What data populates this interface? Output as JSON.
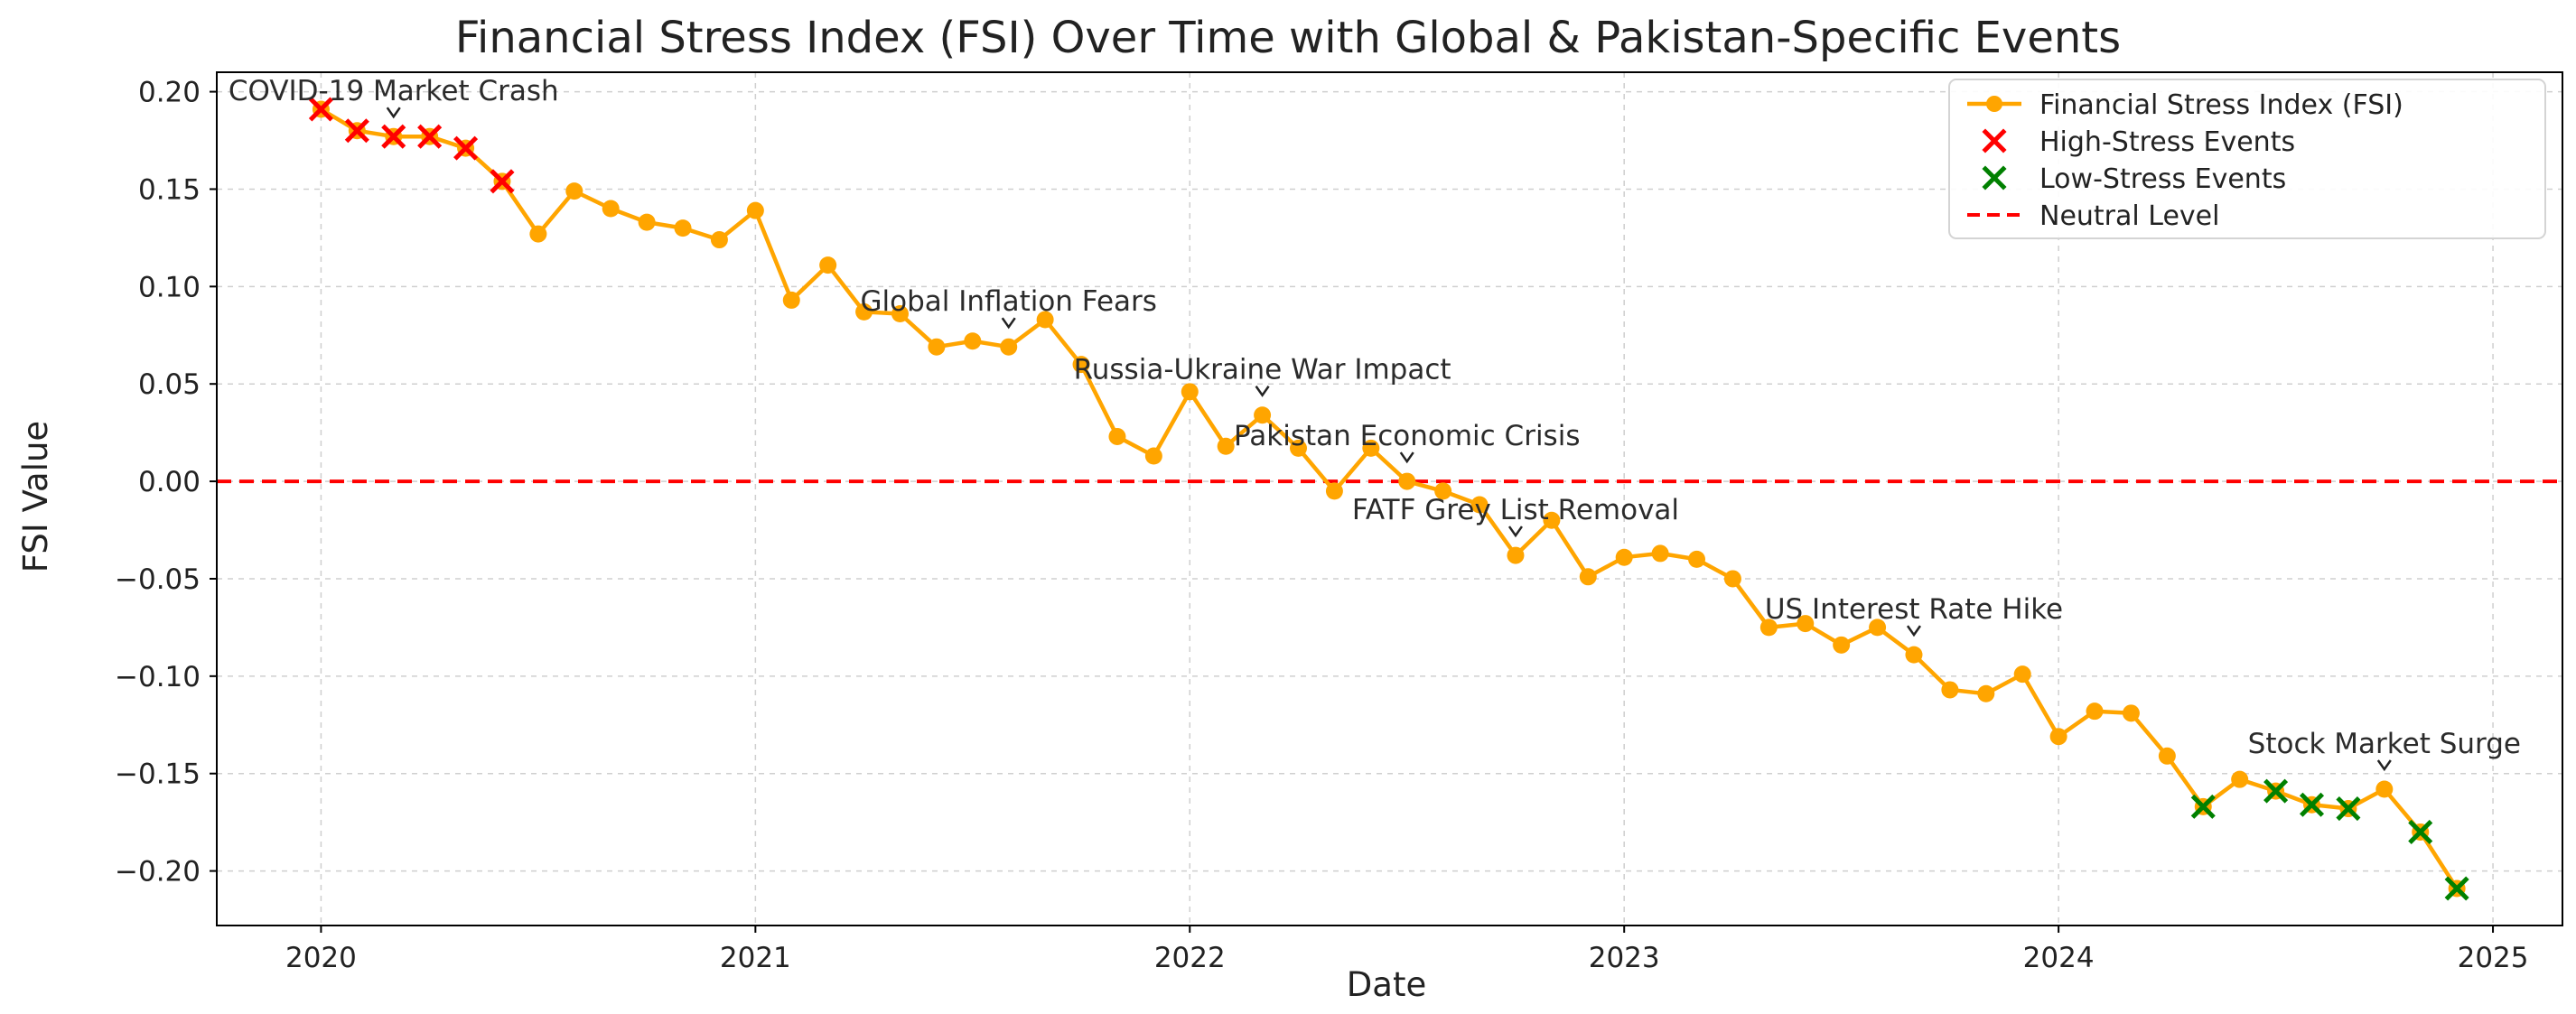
{
  "chart_data": {
    "type": "line",
    "title": "Financial Stress Index (FSI) Over Time with Global & Pakistan-Specific Events",
    "xlabel": "Date",
    "ylabel": "FSI Value",
    "xlim": [
      2019.76,
      2025.16
    ],
    "ylim": [
      -0.228,
      0.21
    ],
    "x_ticks": [
      2020,
      2021,
      2022,
      2023,
      2024,
      2025
    ],
    "x_tick_labels": [
      "2020",
      "2021",
      "2022",
      "2023",
      "2024",
      "2025"
    ],
    "y_ticks": [
      -0.2,
      -0.15,
      -0.1,
      -0.05,
      0.0,
      0.05,
      0.1,
      0.15,
      0.2
    ],
    "y_tick_labels": [
      "−0.20",
      "−0.15",
      "−0.10",
      "−0.05",
      "0.00",
      "0.05",
      "0.10",
      "0.15",
      "0.20"
    ],
    "grid": true,
    "legend_position": "top-right",
    "legend": [
      {
        "label": "Financial Stress Index (FSI)",
        "kind": "line-marker",
        "color": "#FFA500"
      },
      {
        "label": "High-Stress Events",
        "kind": "x",
        "color": "#FF0000"
      },
      {
        "label": "Low-Stress Events",
        "kind": "x",
        "color": "#008000"
      },
      {
        "label": "Neutral Level",
        "kind": "dashed",
        "color": "#FF0000"
      }
    ],
    "neutral_level": 0.0,
    "series": [
      {
        "name": "Financial Stress Index (FSI)",
        "color": "#FFA500",
        "x": [
          2020.0,
          2020.083,
          2020.167,
          2020.25,
          2020.333,
          2020.417,
          2020.5,
          2020.583,
          2020.667,
          2020.75,
          2020.833,
          2020.917,
          2021.0,
          2021.083,
          2021.167,
          2021.25,
          2021.333,
          2021.417,
          2021.5,
          2021.583,
          2021.667,
          2021.75,
          2021.833,
          2021.917,
          2022.0,
          2022.083,
          2022.167,
          2022.25,
          2022.333,
          2022.417,
          2022.5,
          2022.583,
          2022.667,
          2022.75,
          2022.833,
          2022.917,
          2023.0,
          2023.083,
          2023.167,
          2023.25,
          2023.333,
          2023.417,
          2023.5,
          2023.583,
          2023.667,
          2023.75,
          2023.833,
          2023.917,
          2024.0,
          2024.083,
          2024.167,
          2024.25,
          2024.333,
          2024.417,
          2024.5,
          2024.583,
          2024.667,
          2024.75,
          2024.833,
          2024.917
        ],
        "values": [
          0.191,
          0.18,
          0.177,
          0.177,
          0.171,
          0.154,
          0.127,
          0.149,
          0.14,
          0.133,
          0.13,
          0.124,
          0.139,
          0.093,
          0.111,
          0.087,
          0.086,
          0.069,
          0.072,
          0.069,
          0.083,
          0.06,
          0.023,
          0.013,
          0.046,
          0.018,
          0.034,
          0.017,
          -0.005,
          0.017,
          0.0,
          -0.005,
          -0.012,
          -0.038,
          -0.02,
          -0.049,
          -0.039,
          -0.037,
          -0.04,
          -0.05,
          -0.075,
          -0.073,
          -0.084,
          -0.075,
          -0.089,
          -0.107,
          -0.109,
          -0.099,
          -0.131,
          -0.118,
          -0.119,
          -0.141,
          -0.167,
          -0.153,
          -0.159,
          -0.166,
          -0.168,
          -0.158,
          -0.18,
          -0.209
        ]
      }
    ],
    "high_stress_events": {
      "x": [
        2020.0,
        2020.083,
        2020.167,
        2020.25,
        2020.333,
        2020.417
      ],
      "values": [
        0.191,
        0.18,
        0.177,
        0.177,
        0.171,
        0.154
      ]
    },
    "low_stress_events": {
      "x": [
        2024.333,
        2024.5,
        2024.583,
        2024.667,
        2024.833,
        2024.917
      ],
      "values": [
        -0.167,
        -0.159,
        -0.166,
        -0.168,
        -0.18,
        -0.209
      ]
    },
    "annotations": [
      {
        "text": "COVID-19 Market Crash",
        "x": 2020.167,
        "y": 0.177
      },
      {
        "text": "Global Inflation Fears",
        "x": 2021.583,
        "y": 0.069
      },
      {
        "text": "Russia-Ukraine War Impact",
        "x": 2022.167,
        "y": 0.034
      },
      {
        "text": "Pakistan Economic Crisis",
        "x": 2022.5,
        "y": 0.0
      },
      {
        "text": "FATF Grey List Removal",
        "x": 2022.75,
        "y": -0.038
      },
      {
        "text": "US Interest Rate Hike",
        "x": 2023.667,
        "y": -0.089
      },
      {
        "text": "Stock Market Surge",
        "x": 2024.75,
        "y": -0.158
      }
    ]
  }
}
